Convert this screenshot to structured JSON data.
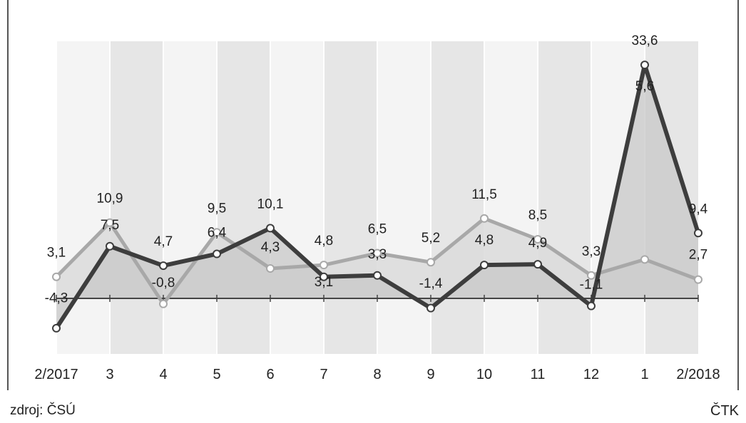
{
  "source": "zdroj: ČSÚ",
  "agency": "ČTK",
  "colors": {
    "dark_series": "#3d3d3d",
    "light_series": "#a8a8a8",
    "dark_fill": "#c8c8c8",
    "light_fill": "#dadada",
    "band_light": "#f4f4f4",
    "band_shaded": "#e6e6e6",
    "baseline": "#444444"
  },
  "chart_data": {
    "type": "line",
    "categories": [
      "2/2017",
      "3",
      "4",
      "5",
      "6",
      "7",
      "8",
      "9",
      "10",
      "11",
      "12",
      "1",
      "2/2018"
    ],
    "series": [
      {
        "color_key": "dark",
        "values": [
          -4.3,
          7.5,
          4.7,
          6.4,
          10.1,
          3.1,
          3.3,
          -1.4,
          4.8,
          4.9,
          -1.1,
          33.6,
          9.4
        ],
        "labels": [
          "-4,3",
          "7,5",
          "4,7",
          "6,4",
          "10,1",
          "3,1",
          "3,3",
          "-1,4",
          "4,8",
          "4,9",
          "-1,1",
          "33,6",
          "9,4"
        ]
      },
      {
        "color_key": "light",
        "values": [
          3.1,
          10.9,
          -0.8,
          9.5,
          4.3,
          4.8,
          6.5,
          5.2,
          11.5,
          8.5,
          3.3,
          5.6,
          2.7
        ],
        "labels": [
          "3,1",
          "10,9",
          "-0,8",
          "9,5",
          "4,3",
          "4,8",
          "6,5",
          "5,2",
          "11,5",
          "8,5",
          "3,3",
          "5,6",
          "2,7"
        ]
      }
    ],
    "ylim": [
      -8,
      37
    ],
    "grid": false,
    "legend": "none"
  }
}
